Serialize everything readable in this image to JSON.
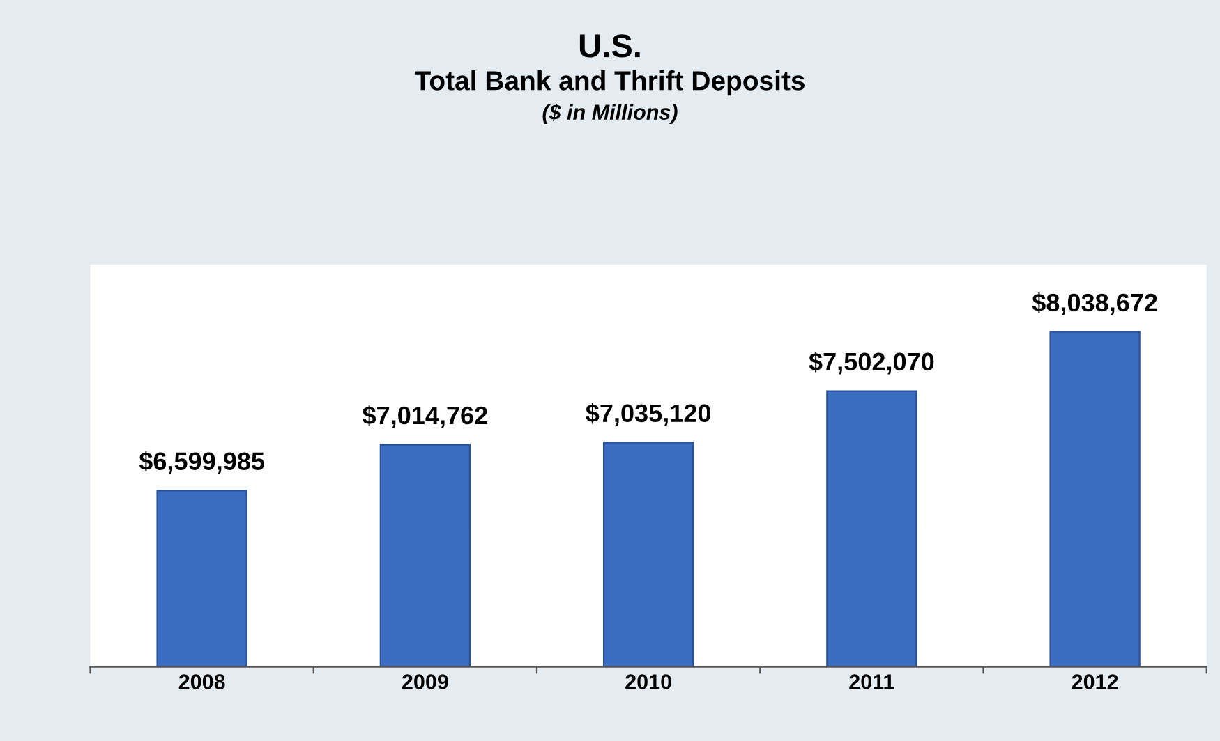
{
  "chart_data": {
    "type": "bar",
    "title": "U.S.",
    "subtitle": "Total Bank and Thrift Deposits",
    "annotations": [
      "($ in Millions)"
    ],
    "categories": [
      "2008",
      "2009",
      "2010",
      "2011",
      "2012"
    ],
    "values": [
      6599985,
      7014762,
      7035120,
      7502070,
      8038672
    ],
    "value_labels": [
      "$6,599,985",
      "$7,014,762",
      "$7,035,120",
      "$7,502,070",
      "$8,038,672"
    ],
    "color": "#3a6cc0",
    "ylim": [
      5000000,
      8650000
    ],
    "tick_labels": "x",
    "grid": false,
    "legend": false
  }
}
